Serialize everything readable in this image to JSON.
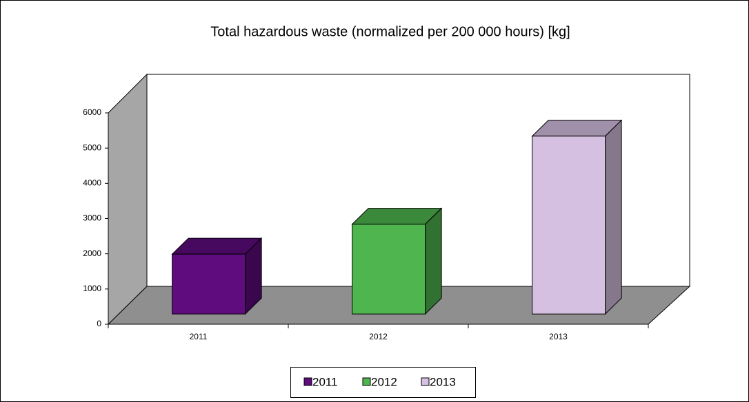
{
  "chart_data": {
    "type": "bar3d",
    "title": "Total hazardous waste (normalized  per 200 000 hours) [kg]",
    "categories": [
      "2011",
      "2012",
      "2013"
    ],
    "values": [
      1700,
      2550,
      5050
    ],
    "colors": [
      "#5e0c7e",
      "#4fb64f",
      "#d6c0e2"
    ],
    "ylim": [
      0,
      6000
    ],
    "yticks": [
      0,
      1000,
      2000,
      3000,
      4000,
      5000,
      6000
    ],
    "legend": "bottom"
  }
}
